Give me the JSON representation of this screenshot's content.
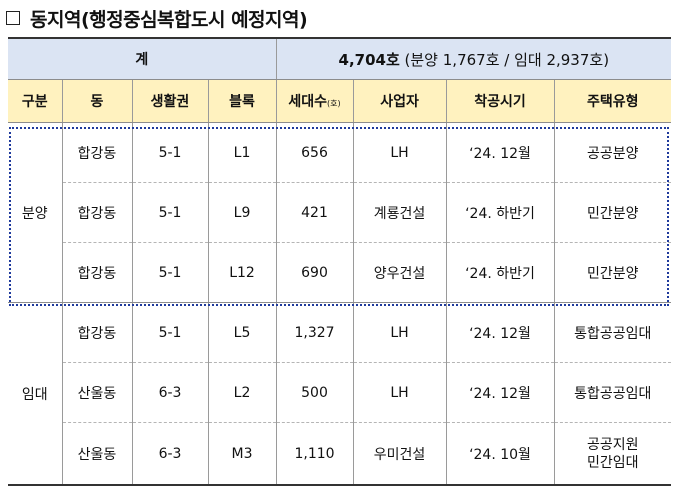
{
  "heading": {
    "checkbox_icon": "empty-square",
    "title": "동지역(행정중심복합도시 예정지역)"
  },
  "table": {
    "total_label": "계",
    "total_count": "4,704호",
    "total_breakdown": " (분양 1,767호 / 임대 2,937호)",
    "headers": {
      "category": "구분",
      "dong": "동",
      "zone": "생활권",
      "block": "블록",
      "households": "세대수",
      "households_unit": "(호)",
      "developer": "사업자",
      "start": "착공시기",
      "type": "주택유형"
    },
    "groups": {
      "sale": "분양",
      "rent": "임대"
    },
    "rows": [
      {
        "dong": "합강동",
        "zone": "5-1",
        "block": "L1",
        "households": "656",
        "developer": "LH",
        "start": "‘24. 12월",
        "type": "공공분양",
        "type2": ""
      },
      {
        "dong": "합강동",
        "zone": "5-1",
        "block": "L9",
        "households": "421",
        "developer": "계룡건설",
        "start": "‘24. 하반기",
        "type": "민간분양",
        "type2": ""
      },
      {
        "dong": "합강동",
        "zone": "5-1",
        "block": "L12",
        "households": "690",
        "developer": "양우건설",
        "start": "‘24. 하반기",
        "type": "민간분양",
        "type2": ""
      },
      {
        "dong": "합강동",
        "zone": "5-1",
        "block": "L5",
        "households": "1,327",
        "developer": "LH",
        "start": "‘24. 12월",
        "type": "통합공공임대",
        "type2": ""
      },
      {
        "dong": "산울동",
        "zone": "6-3",
        "block": "L2",
        "households": "500",
        "developer": "LH",
        "start": "‘24. 12월",
        "type": "통합공공임대",
        "type2": ""
      },
      {
        "dong": "산울동",
        "zone": "6-3",
        "block": "M3",
        "households": "1,110",
        "developer": "우미건설",
        "start": "‘24. 10월",
        "type": "공공지원",
        "type2": "민간임대"
      }
    ]
  }
}
